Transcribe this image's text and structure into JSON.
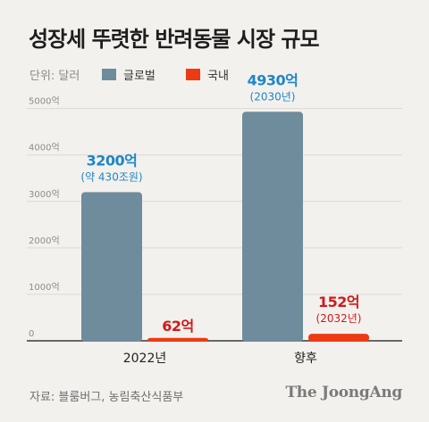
{
  "title": "성장세 뚜렷한 반려동물 시장 규모",
  "unit_label": "단위: 달러",
  "source": "자료: 블룸버그, 농림축산식품부",
  "brand": "The JoongAng",
  "colors": {
    "global": "#6e8c9c",
    "domestic": "#ee3a12",
    "global_label": "#1e86c8",
    "domestic_label": "#d11a1a"
  },
  "chart_data": {
    "type": "bar",
    "categories": [
      "2022년",
      "향후"
    ],
    "series": [
      {
        "name": "글로벌",
        "values": [
          3200,
          4930
        ],
        "labels": [
          "3200억",
          "4930억"
        ],
        "sublabels": [
          "(약 430조원)",
          "(2030년)"
        ]
      },
      {
        "name": "국내",
        "values": [
          62,
          152
        ],
        "labels": [
          "62억",
          "152억"
        ],
        "sublabels": [
          "",
          "(2032년)"
        ]
      }
    ],
    "yticks": [
      {
        "value": 0,
        "label": "0"
      },
      {
        "value": 1000,
        "label": "1000억"
      },
      {
        "value": 2000,
        "label": "2000억"
      },
      {
        "value": 3000,
        "label": "3000억"
      },
      {
        "value": 4000,
        "label": "4000억"
      },
      {
        "value": 5000,
        "label": "5000억"
      }
    ],
    "ylim": [
      0,
      5300
    ],
    "grid": true,
    "legend_position": "top"
  }
}
